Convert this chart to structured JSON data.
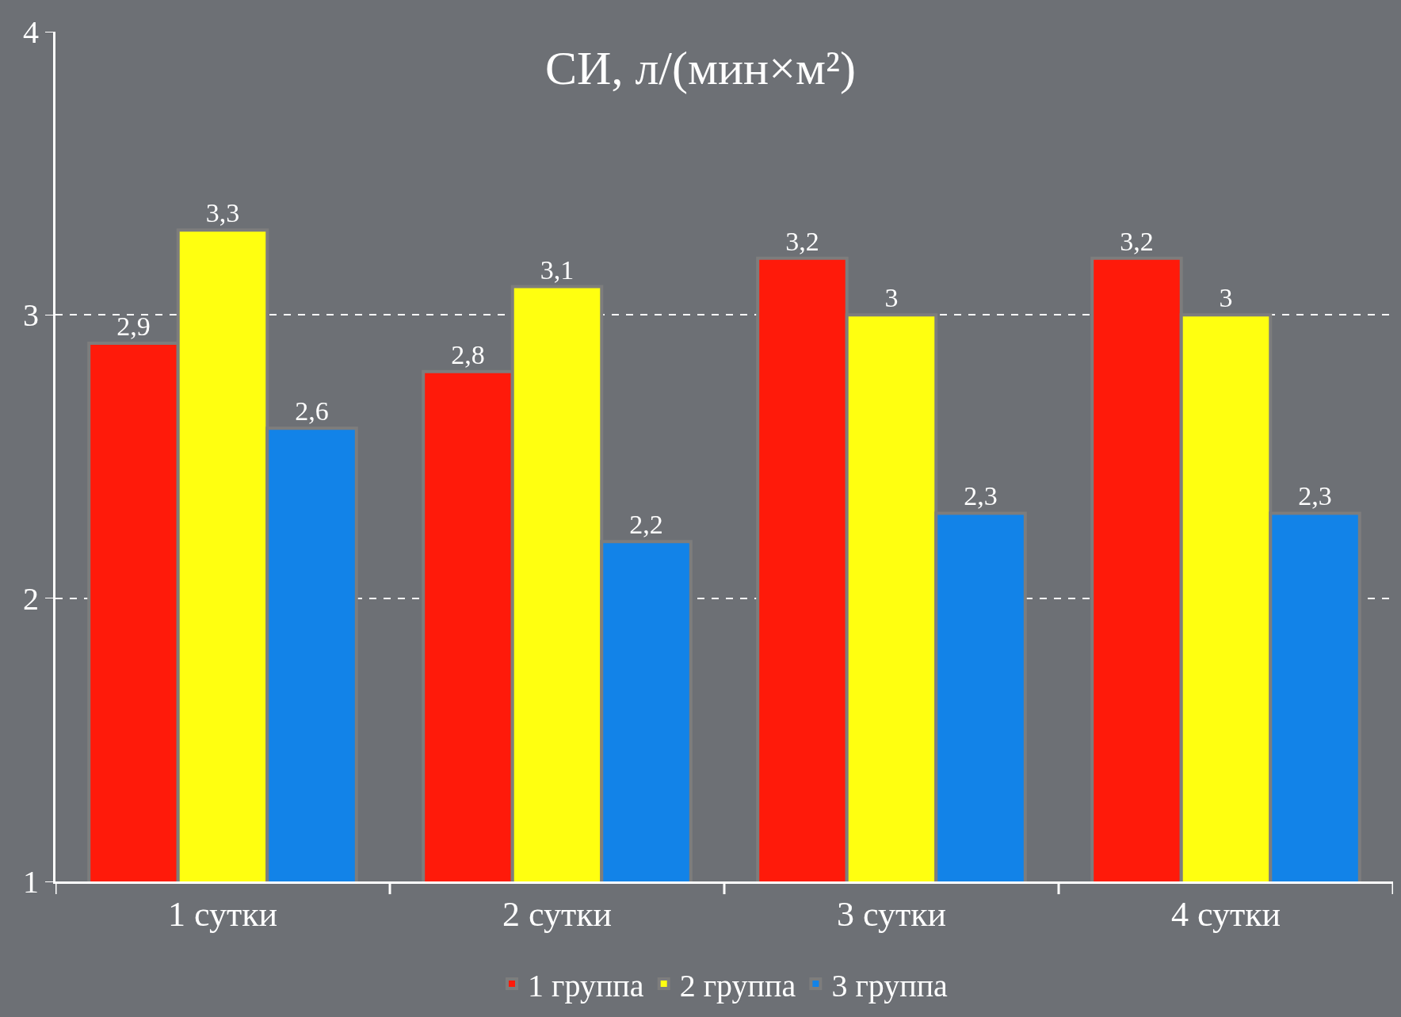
{
  "chart_data": {
    "type": "bar",
    "title": "СИ, л/(мин×м²)",
    "categories": [
      "1 сутки",
      "2 сутки",
      "3 сутки",
      "4 сутки"
    ],
    "series": [
      {
        "name": "1 группа",
        "color": "#ff1a0a",
        "values": [
          2.9,
          2.8,
          3.2,
          3.2
        ],
        "value_labels": [
          "2,9",
          "2,8",
          "3,2",
          "3,2"
        ]
      },
      {
        "name": "2 группа",
        "color": "#ffff10",
        "values": [
          3.3,
          3.1,
          3,
          3
        ],
        "value_labels": [
          "3,3",
          "3,1",
          "3",
          "3"
        ]
      },
      {
        "name": "3 группа",
        "color": "#1283e8",
        "values": [
          2.6,
          2.2,
          2.3,
          2.3
        ],
        "value_labels": [
          "2,6",
          "2,2",
          "2,3",
          "2,3"
        ]
      }
    ],
    "ylim": [
      1,
      4
    ],
    "yticks": [
      1,
      2,
      3,
      4
    ],
    "grid": "y",
    "legend": "bottom"
  }
}
